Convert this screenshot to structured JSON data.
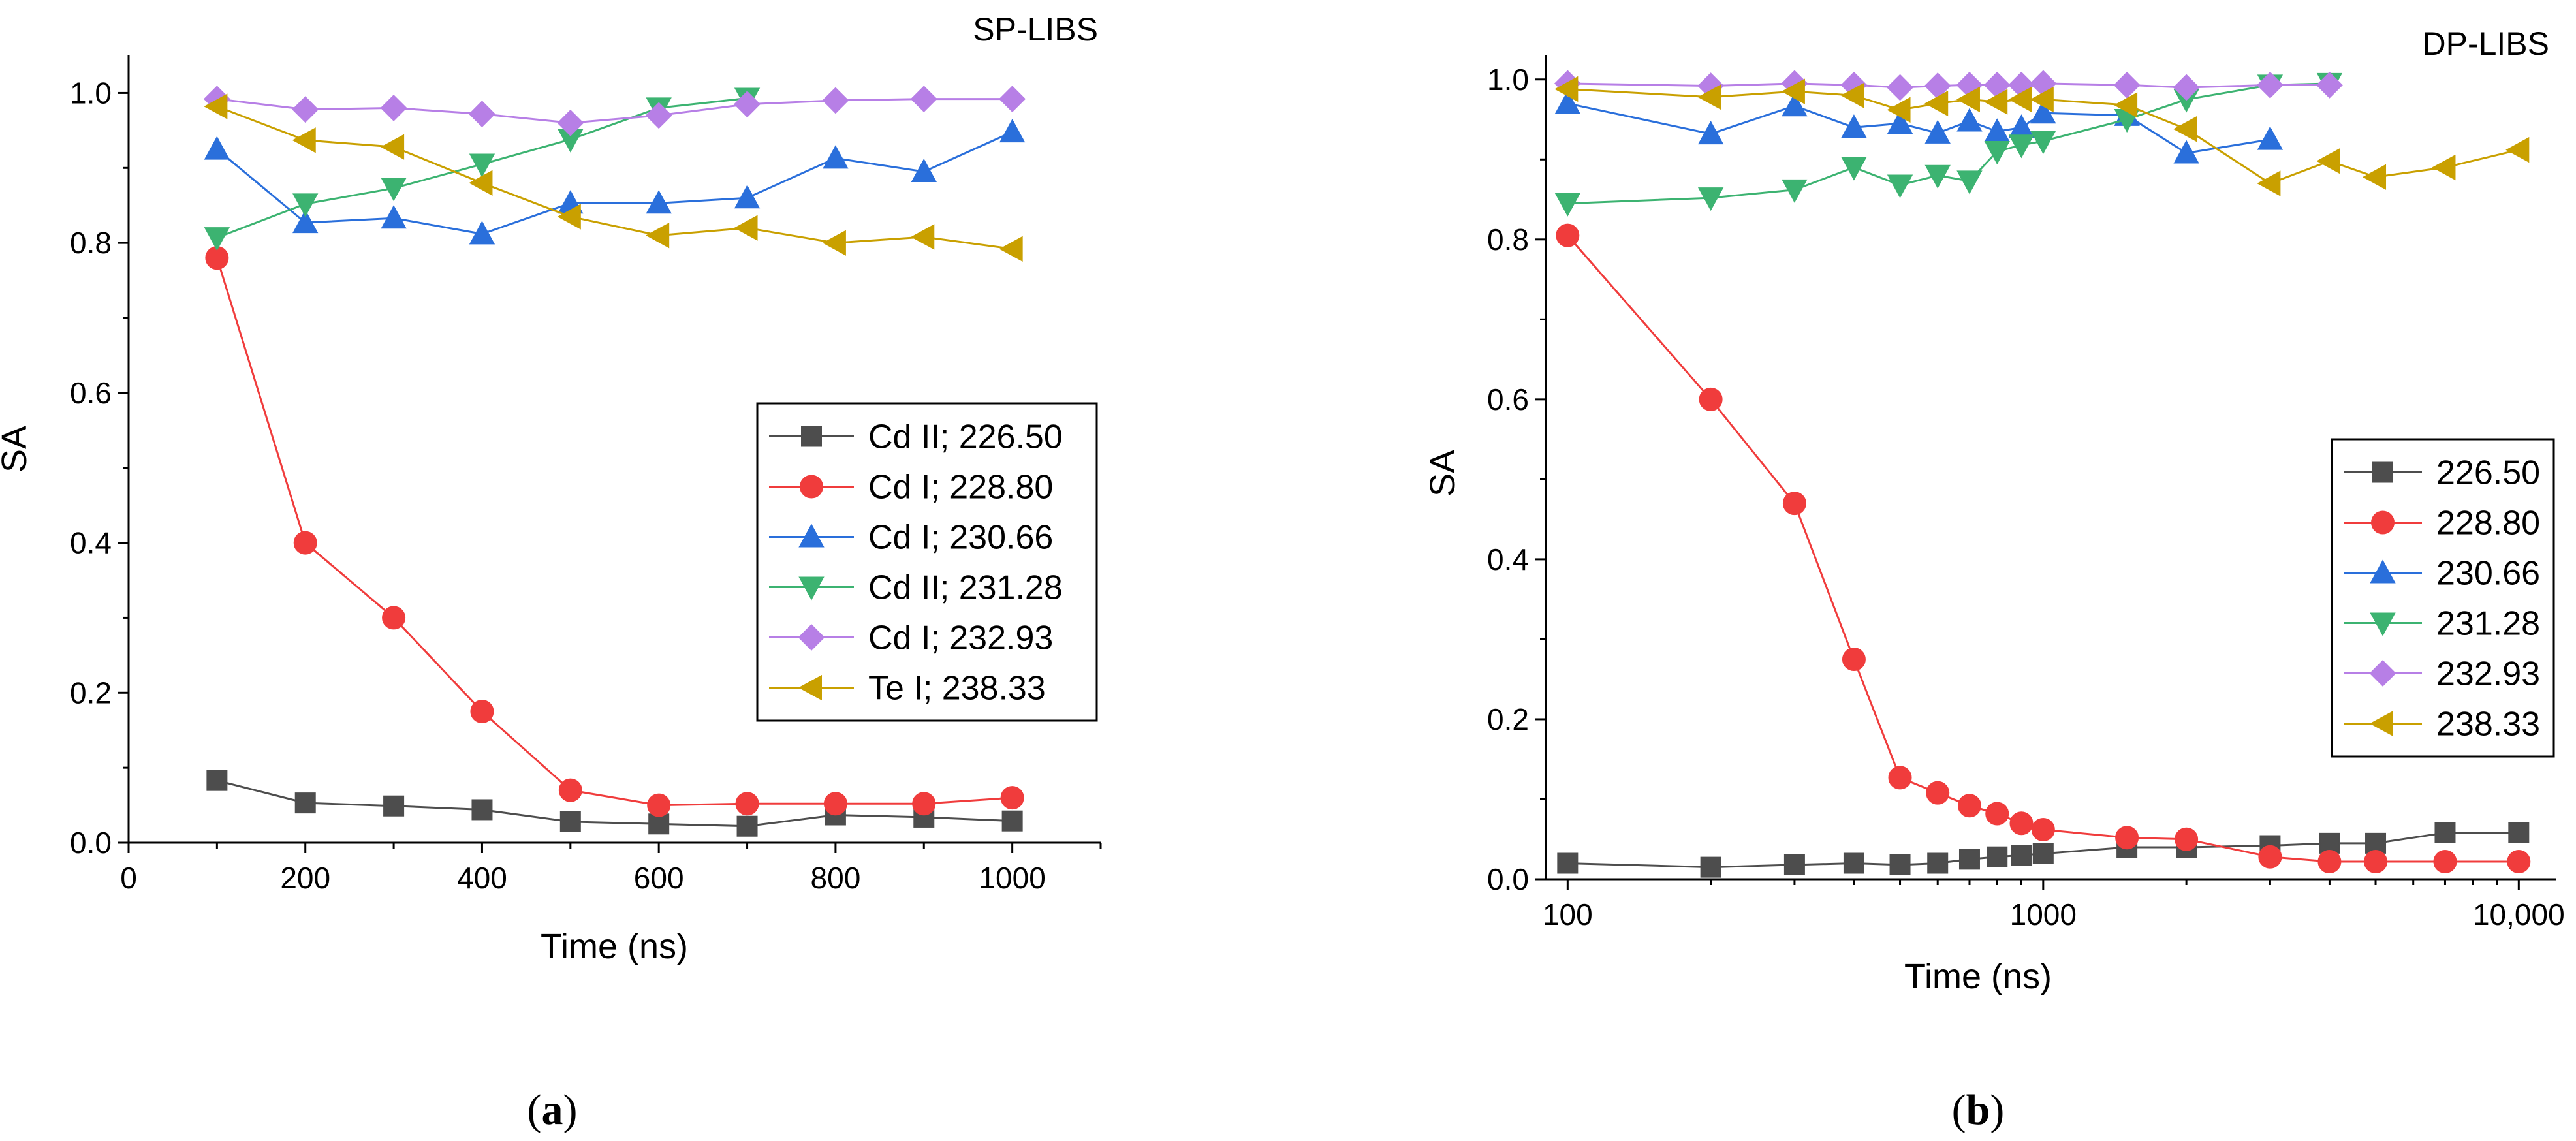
{
  "chart_data": [
    {
      "type": "line",
      "panel_label": "a",
      "title": "SP-LIBS",
      "xlabel": "Time (ns)",
      "ylabel": "SA",
      "xscale": "linear",
      "xlim": [
        0,
        1100
      ],
      "ylim": [
        0,
        1.05
      ],
      "xticks": [
        0,
        200,
        400,
        600,
        800,
        1000
      ],
      "xtick_labels": [
        "0",
        "200",
        "400",
        "600",
        "800",
        "1000"
      ],
      "yticks": [
        0.0,
        0.2,
        0.4,
        0.6,
        0.8,
        1.0
      ],
      "ytick_labels": [
        "0.0",
        "0.2",
        "0.4",
        "0.6",
        "0.8",
        "1.0"
      ],
      "legend_position": "center-right",
      "series": [
        {
          "name": "Cd II; 226.50",
          "color": "#4d4d4d",
          "marker": "square",
          "x": [
            100,
            200,
            300,
            400,
            500,
            600,
            700,
            800,
            900,
            1000
          ],
          "values": [
            0.083,
            0.053,
            0.049,
            0.044,
            0.028,
            0.025,
            0.022,
            0.037,
            0.034,
            0.029
          ]
        },
        {
          "name": "Cd I; 228.80",
          "color": "#f03c3c",
          "marker": "circle",
          "x": [
            100,
            200,
            300,
            400,
            500,
            600,
            700,
            800,
            900,
            1000
          ],
          "values": [
            0.78,
            0.4,
            0.3,
            0.175,
            0.07,
            0.05,
            0.052,
            0.052,
            0.052,
            0.06
          ]
        },
        {
          "name": "Cd I; 230.66",
          "color": "#2a6fdb",
          "marker": "triangle-up",
          "x": [
            100,
            200,
            300,
            400,
            500,
            600,
            700,
            800,
            900,
            1000
          ],
          "values": [
            0.925,
            0.827,
            0.833,
            0.812,
            0.853,
            0.853,
            0.86,
            0.913,
            0.895,
            0.948
          ]
        },
        {
          "name": "Cd II; 231.28",
          "color": "#3cb371",
          "marker": "triangle-down",
          "x": [
            100,
            200,
            300,
            400,
            500,
            600,
            700
          ],
          "values": [
            0.807,
            0.852,
            0.873,
            0.905,
            0.938,
            0.98,
            0.993
          ]
        },
        {
          "name": "Cd I; 232.93",
          "color": "#b77fe6",
          "marker": "diamond",
          "x": [
            100,
            200,
            300,
            400,
            500,
            600,
            700,
            800,
            900,
            1000
          ],
          "values": [
            0.992,
            0.978,
            0.98,
            0.972,
            0.96,
            0.97,
            0.985,
            0.99,
            0.992,
            0.992
          ]
        },
        {
          "name": "Te I; 238.33",
          "color": "#c9a000",
          "marker": "triangle-left",
          "x": [
            100,
            200,
            300,
            400,
            500,
            600,
            700,
            800,
            900,
            1000
          ],
          "values": [
            0.982,
            0.937,
            0.928,
            0.88,
            0.835,
            0.81,
            0.82,
            0.8,
            0.808,
            0.792
          ]
        }
      ]
    },
    {
      "type": "line",
      "panel_label": "b",
      "title": "DP-LIBS",
      "xlabel": "Time (ns)",
      "ylabel": "SA",
      "xscale": "log",
      "xlim": [
        90,
        12000
      ],
      "ylim": [
        0,
        1.03
      ],
      "xticks": [
        100,
        1000,
        10000
      ],
      "xtick_labels": [
        "100",
        "1000",
        "10,000"
      ],
      "yticks": [
        0.0,
        0.2,
        0.4,
        0.6,
        0.8,
        1.0
      ],
      "ytick_labels": [
        "0.0",
        "0.2",
        "0.4",
        "0.6",
        "0.8",
        "1.0"
      ],
      "legend_position": "center-right",
      "series": [
        {
          "name": "226.50",
          "color": "#4d4d4d",
          "marker": "square",
          "x": [
            100,
            200,
            300,
            400,
            500,
            600,
            700,
            800,
            900,
            1000,
            1500,
            2000,
            3000,
            4000,
            5000,
            7000,
            10000
          ],
          "values": [
            0.02,
            0.015,
            0.018,
            0.02,
            0.018,
            0.02,
            0.025,
            0.028,
            0.03,
            0.032,
            0.04,
            0.04,
            0.042,
            0.045,
            0.045,
            0.058,
            0.058
          ]
        },
        {
          "name": "228.80",
          "color": "#f03c3c",
          "marker": "circle",
          "x": [
            100,
            200,
            300,
            400,
            500,
            600,
            700,
            800,
            900,
            1000,
            1500,
            2000,
            3000,
            4000,
            5000,
            7000,
            10000
          ],
          "values": [
            0.805,
            0.6,
            0.47,
            0.275,
            0.127,
            0.108,
            0.092,
            0.082,
            0.07,
            0.062,
            0.052,
            0.05,
            0.028,
            0.022,
            0.022,
            0.022,
            0.022
          ]
        },
        {
          "name": "230.66",
          "color": "#2a6fdb",
          "marker": "triangle-up",
          "x": [
            100,
            200,
            300,
            400,
            500,
            600,
            700,
            800,
            900,
            1000,
            1500,
            2000,
            3000
          ],
          "values": [
            0.97,
            0.932,
            0.967,
            0.94,
            0.945,
            0.933,
            0.948,
            0.935,
            0.94,
            0.958,
            0.955,
            0.908,
            0.925
          ]
        },
        {
          "name": "231.28",
          "color": "#3cb371",
          "marker": "triangle-down",
          "x": [
            100,
            200,
            300,
            400,
            500,
            600,
            700,
            800,
            900,
            1000,
            1500,
            2000,
            3000,
            4000
          ],
          "values": [
            0.845,
            0.852,
            0.862,
            0.89,
            0.868,
            0.88,
            0.873,
            0.91,
            0.918,
            0.923,
            0.95,
            0.975,
            0.993,
            0.995
          ]
        },
        {
          "name": "232.93",
          "color": "#b77fe6",
          "marker": "diamond",
          "x": [
            100,
            200,
            300,
            400,
            500,
            600,
            700,
            800,
            900,
            1000,
            1500,
            2000,
            3000,
            4000
          ],
          "values": [
            0.995,
            0.992,
            0.995,
            0.993,
            0.99,
            0.992,
            0.993,
            0.993,
            0.993,
            0.995,
            0.993,
            0.99,
            0.993,
            0.993
          ]
        },
        {
          "name": "238.33",
          "color": "#c9a000",
          "marker": "triangle-left",
          "x": [
            100,
            200,
            300,
            400,
            500,
            600,
            700,
            800,
            900,
            1000,
            1500,
            2000,
            3000,
            4000,
            5000,
            7000,
            10000
          ],
          "values": [
            0.988,
            0.978,
            0.985,
            0.98,
            0.962,
            0.97,
            0.975,
            0.972,
            0.975,
            0.975,
            0.968,
            0.938,
            0.87,
            0.898,
            0.878,
            0.89,
            0.912
          ]
        }
      ]
    }
  ]
}
